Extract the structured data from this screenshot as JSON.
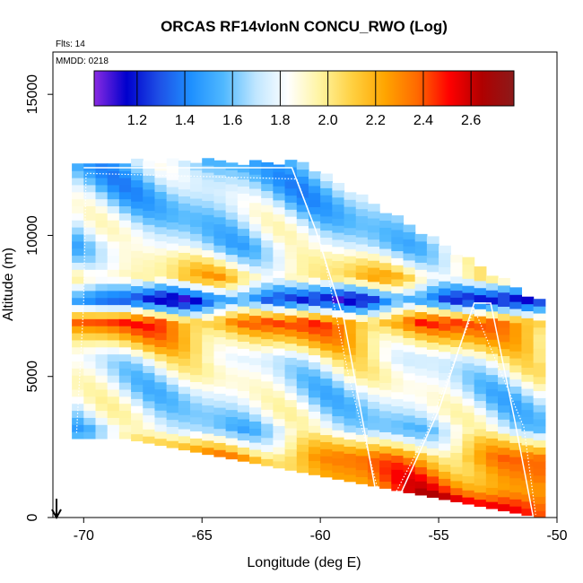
{
  "chart_data": {
    "type": "heatmap",
    "title": "ORCAS RF14vlonN CONCU_RWO (Log)",
    "flights_note": "Flts: 14",
    "date_note": "MMDD: 0218",
    "xlabel": "Longitude (deg E)",
    "ylabel": "Altitude (m)",
    "xlim": [
      -71.3,
      -50
    ],
    "ylim": [
      0,
      16500
    ],
    "x_ticks": [
      -70,
      -65,
      -60,
      -55,
      -50
    ],
    "x_tick_labels": [
      "-70",
      "-65",
      "-60",
      "-55",
      "-50"
    ],
    "y_ticks": [
      0,
      5000,
      10000,
      15000
    ],
    "y_tick_labels": [
      "0",
      "5000",
      "10000",
      "15000"
    ],
    "colorbar": {
      "range": [
        1.02,
        2.78
      ],
      "ticks": [
        1.2,
        1.4,
        1.6,
        1.8,
        2.0,
        2.2,
        2.4,
        2.6
      ],
      "tick_labels": [
        "1.2",
        "1.4",
        "1.6",
        "1.8",
        "2.0",
        "2.2",
        "2.4",
        "2.6"
      ],
      "colors": [
        "#8a2be2",
        "#0000cd",
        "#1e4fe6",
        "#1e90ff",
        "#4fb8ff",
        "#bfe6ff",
        "#ffffff",
        "#fff4a0",
        "#ffd040",
        "#ffa500",
        "#ff6a00",
        "#ff0000",
        "#b00000",
        "#8b1a1a"
      ]
    },
    "flight_track": [
      {
        "lon": -70.0,
        "alt": 12400
      },
      {
        "lon": -61.2,
        "alt": 12400
      },
      {
        "lon": -60.2,
        "alt": 10200
      },
      {
        "lon": -59.0,
        "alt": 7000
      },
      {
        "lon": -57.5,
        "alt": 200
      },
      {
        "lon": -56.9,
        "alt": 300
      },
      {
        "lon": -55.0,
        "alt": 3800
      },
      {
        "lon": -53.5,
        "alt": 7600
      },
      {
        "lon": -52.8,
        "alt": 7600
      },
      {
        "lon": -51.8,
        "alt": 3500
      },
      {
        "lon": -51.0,
        "alt": 0
      }
    ],
    "profile_track": [
      {
        "lon": -70.3,
        "alt": 3000
      },
      {
        "lon": -70.0,
        "alt": 7600
      },
      {
        "lon": -69.9,
        "alt": 12200
      },
      {
        "lon": -61.0,
        "alt": 12000
      },
      {
        "lon": -59.9,
        "alt": 9500
      },
      {
        "lon": -58.8,
        "alt": 5000
      },
      {
        "lon": -57.3,
        "alt": 100
      },
      {
        "lon": -55.5,
        "alt": 3000
      },
      {
        "lon": -53.5,
        "alt": 7400
      },
      {
        "lon": -51.4,
        "alt": 3200
      },
      {
        "lon": -50.9,
        "alt": 100
      }
    ],
    "layers": [
      {
        "alt": 12300,
        "lon_start": -70.0,
        "lon_end": -61.0,
        "value": 1.62
      },
      {
        "alt": 11000,
        "lon_start": -70.0,
        "lon_end": -58.5,
        "value": 1.65
      },
      {
        "alt": 9500,
        "lon_start": -70.0,
        "lon_end": -56.5,
        "value": 1.72
      },
      {
        "alt": 8400,
        "lon_start": -69.8,
        "lon_end": -55.5,
        "value": 2.05
      },
      {
        "alt": 7600,
        "lon_start": -70.2,
        "lon_end": -51.3,
        "value": 1.25
      },
      {
        "alt": 6800,
        "lon_start": -70.2,
        "lon_end": -51.3,
        "value": 2.35
      },
      {
        "alt": 5500,
        "lon_start": -70.2,
        "lon_end": -51.3,
        "value": 1.85
      },
      {
        "alt": 4300,
        "lon_start": -70.2,
        "lon_end": -51.0,
        "value": 1.75
      },
      {
        "alt": 3000,
        "lon_start": -70.5,
        "lon_end": -51.0,
        "value": 1.7
      },
      {
        "alt": 2000,
        "lon_start": -68.5,
        "lon_end": -50.8,
        "value": 2.25
      },
      {
        "alt": 900,
        "lon_start": -63.0,
        "lon_end": -50.8,
        "value": 2.35
      },
      {
        "alt": 300,
        "lon_start": -58.5,
        "lon_end": -51.0,
        "value": 2.55
      }
    ]
  },
  "annotation": {
    "arrow_symbol": "down-arrow"
  }
}
